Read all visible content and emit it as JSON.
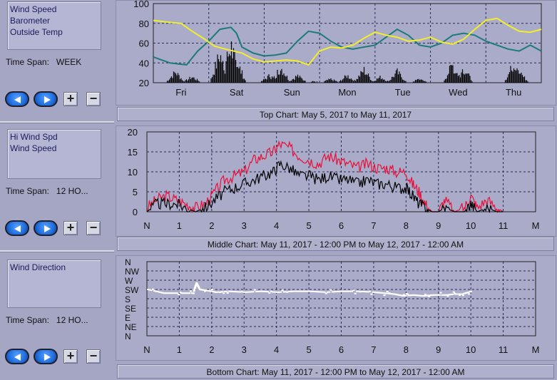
{
  "left": {
    "legend1": [
      "Wind Speed",
      "Barometer",
      "Outside Temp"
    ],
    "legend2": [
      "Hi Wind Spd",
      "Wind Speed"
    ],
    "legend3": [
      "Wind Direction"
    ],
    "timespan_label": "Time Span:",
    "timespan1": "WEEK",
    "timespan2": "12 HO...",
    "timespan3": "12 HO..."
  },
  "buttons": {
    "plus": "+",
    "minus": "−"
  },
  "captions": {
    "top": "Top Chart:  May 5, 2017  to  May 11, 2017",
    "middle": "Middle Chart:  May 11, 2017 - 12:00 PM  to  May 12, 2017 - 12:00 AM",
    "bottom": "Bottom Chart:  May 11, 2017 - 12:00 PM  to  May 12, 2017 - 12:00 AM"
  },
  "colors": {
    "wind": "#000000",
    "barometer": "#1c7a78",
    "temp": "#f2ee2a",
    "hiwind": "#e8103a",
    "direction": "#ffffff"
  },
  "chart_data": [
    {
      "type": "line",
      "ylim": [
        20,
        100
      ],
      "y_ticks": [
        20,
        40,
        60,
        80,
        100
      ],
      "x_labels": [
        "Fri",
        "Sat",
        "Sun",
        "Mon",
        "Tue",
        "Wed",
        "Thu"
      ],
      "x_range_days": [
        0,
        7
      ],
      "grid": true,
      "series": [
        {
          "key": "temp",
          "x": [
            0,
            0.3,
            0.5,
            0.7,
            0.9,
            1.1,
            1.3,
            1.6,
            1.8,
            2.0,
            2.2,
            2.4,
            2.6,
            2.8,
            3.0,
            3.2,
            3.4,
            3.6,
            3.8,
            4.0,
            4.2,
            4.4,
            4.6,
            4.8,
            5.0,
            5.2,
            5.4,
            5.6,
            5.8,
            6.0,
            6.2,
            6.4,
            6.6,
            6.8,
            7.0
          ],
          "y": [
            83,
            81,
            80,
            72,
            65,
            57,
            54,
            50,
            44,
            41,
            42,
            43,
            42,
            38,
            52,
            56,
            55,
            58,
            65,
            71,
            68,
            66,
            62,
            63,
            66,
            61,
            59,
            64,
            74,
            83,
            85,
            78,
            72,
            71,
            74
          ]
        },
        {
          "key": "barometer",
          "x": [
            0,
            0.3,
            0.6,
            0.8,
            1.0,
            1.2,
            1.4,
            1.5,
            1.6,
            1.8,
            2.0,
            2.2,
            2.4,
            2.6,
            2.8,
            3.0,
            3.2,
            3.4,
            3.6,
            3.8,
            4.0,
            4.2,
            4.4,
            4.6,
            4.8,
            5.0,
            5.2,
            5.4,
            5.6,
            5.8,
            6.0,
            6.2,
            6.4,
            6.6,
            6.8,
            7.0
          ],
          "y": [
            46,
            40,
            38,
            52,
            62,
            74,
            76,
            70,
            56,
            50,
            47,
            48,
            50,
            62,
            72,
            70,
            62,
            56,
            54,
            56,
            58,
            66,
            74,
            68,
            58,
            56,
            60,
            68,
            70,
            68,
            62,
            58,
            54,
            52,
            58,
            52
          ]
        },
        {
          "key": "wind",
          "peaks": [
            [
              0.4,
              35
            ],
            [
              0.7,
              28
            ],
            [
              1.2,
              60
            ],
            [
              1.4,
              72
            ],
            [
              1.5,
              50
            ],
            [
              2.1,
              30
            ],
            [
              2.3,
              42
            ],
            [
              2.6,
              30
            ],
            [
              2.9,
              22
            ],
            [
              3.2,
              25
            ],
            [
              3.5,
              30
            ],
            [
              3.8,
              38
            ],
            [
              4.1,
              28
            ],
            [
              4.4,
              35
            ],
            [
              4.8,
              25
            ],
            [
              5.0,
              20
            ],
            [
              5.4,
              45
            ],
            [
              5.6,
              40
            ],
            [
              6.1,
              18
            ],
            [
              6.5,
              45
            ],
            [
              6.6,
              35
            ]
          ]
        }
      ]
    },
    {
      "type": "line",
      "ylim": [
        0,
        20
      ],
      "y_ticks": [
        0,
        5,
        10,
        15,
        20
      ],
      "x_labels": [
        "N",
        "1",
        "2",
        "3",
        "4",
        "5",
        "6",
        "7",
        "8",
        "9",
        "10",
        "11",
        "M"
      ],
      "grid": true,
      "series": [
        {
          "key": "hiwind",
          "x": [
            0,
            0.3,
            0.6,
            0.9,
            1.2,
            1.5,
            1.8,
            2.1,
            2.4,
            2.7,
            3.0,
            3.3,
            3.6,
            3.9,
            4.1,
            4.4,
            4.7,
            5.0,
            5.3,
            5.6,
            5.9,
            6.2,
            6.5,
            6.8,
            7.1,
            7.4,
            7.7,
            8.0,
            8.2,
            8.4,
            8.6,
            8.8,
            9.0,
            9.2,
            9.5,
            9.8,
            10.0,
            10.2,
            10.5,
            10.8,
            11.0
          ],
          "y": [
            1,
            3,
            4,
            3,
            2,
            1,
            2,
            5,
            8,
            9,
            10,
            13,
            14,
            15,
            17,
            16,
            14,
            13,
            12,
            14,
            13,
            12,
            11,
            12,
            11,
            11,
            10,
            10,
            7,
            5,
            2,
            0,
            0,
            3,
            0,
            1,
            4,
            1,
            3,
            1,
            0
          ]
        },
        {
          "key": "wind",
          "x": [
            0,
            0.3,
            0.6,
            0.9,
            1.2,
            1.5,
            1.8,
            2.1,
            2.4,
            2.7,
            3.0,
            3.3,
            3.6,
            3.9,
            4.1,
            4.4,
            4.7,
            5.0,
            5.3,
            5.6,
            5.9,
            6.2,
            6.5,
            6.8,
            7.1,
            7.4,
            7.7,
            8.0,
            8.2,
            8.4,
            8.6,
            8.8,
            9.0,
            9.2,
            9.5,
            9.8,
            10.0,
            10.2,
            10.5,
            10.8,
            11.0
          ],
          "y": [
            0,
            2,
            2,
            2,
            1,
            0,
            1,
            3,
            5,
            6,
            7,
            8,
            9,
            10,
            12,
            11,
            9,
            9,
            8,
            9,
            8,
            8,
            7,
            8,
            7,
            7,
            6,
            6,
            4,
            2,
            1,
            0,
            0,
            1,
            0,
            0,
            2,
            0,
            1,
            0,
            0
          ]
        }
      ]
    },
    {
      "type": "scatter",
      "y_labels": [
        "N",
        "NW",
        "W",
        "SW",
        "S",
        "SE",
        "E",
        "NE",
        "N"
      ],
      "x_labels": [
        "N",
        "1",
        "2",
        "3",
        "4",
        "5",
        "6",
        "7",
        "8",
        "9",
        "10",
        "11",
        "M"
      ],
      "grid": true,
      "series": [
        {
          "key": "direction",
          "x": [
            0,
            0.5,
            1.0,
            1.4,
            1.5,
            1.6,
            1.8,
            2.1,
            2.5,
            3.0,
            3.5,
            4.0,
            4.5,
            5.0,
            5.5,
            6.0,
            6.5,
            7.0,
            7.3,
            7.6,
            7.9,
            8.2,
            8.5,
            8.8,
            9.2,
            9.5,
            9.7,
            10.0
          ],
          "y": [
            3.0,
            3.4,
            3.4,
            3.4,
            2.3,
            3.0,
            3.1,
            3.3,
            3.2,
            3.3,
            3.2,
            3.3,
            3.2,
            3.2,
            3.3,
            3.2,
            3.2,
            3.3,
            3.4,
            3.5,
            3.7,
            3.6,
            3.7,
            3.6,
            3.6,
            3.5,
            3.5,
            3.2
          ]
        }
      ]
    }
  ]
}
